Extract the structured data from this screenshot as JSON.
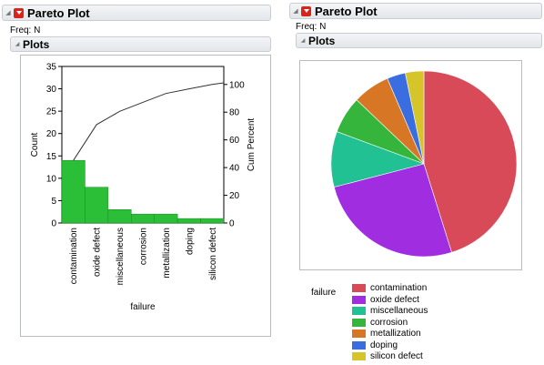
{
  "report": {
    "title": "Pareto Plot",
    "freq_label": "Freq: N",
    "plots_label": "Plots"
  },
  "chart_data": [
    {
      "type": "bar",
      "xlabel": "failure",
      "ylabel": "Count",
      "y2label": "Cum Percent",
      "categories": [
        "contamination",
        "oxide defect",
        "miscellaneous",
        "corrosion",
        "metallization",
        "doping",
        "silicon defect"
      ],
      "values": [
        14,
        8,
        3,
        2,
        2,
        1,
        1
      ],
      "cum_percent": [
        45.2,
        71.0,
        80.6,
        87.1,
        93.5,
        96.8,
        100
      ],
      "ylim": [
        0,
        35
      ],
      "yticks": [
        0,
        5,
        10,
        15,
        20,
        25,
        30,
        35
      ],
      "y2lim": [
        0,
        113
      ],
      "y2ticks": [
        0,
        20,
        40,
        60,
        80,
        100
      ],
      "bar_color": "#2bbf38",
      "grid": false
    },
    {
      "type": "pie",
      "legend_title": "failure",
      "categories": [
        "contamination",
        "oxide defect",
        "miscellaneous",
        "corrosion",
        "metallization",
        "doping",
        "silicon defect"
      ],
      "values": [
        14,
        8,
        3,
        2,
        2,
        1,
        1
      ],
      "colors": [
        "#d84a57",
        "#a02de0",
        "#22c194",
        "#36b53c",
        "#d77726",
        "#3a6ee0",
        "#d5c42a"
      ],
      "legend_placement": "bottom-left"
    }
  ]
}
